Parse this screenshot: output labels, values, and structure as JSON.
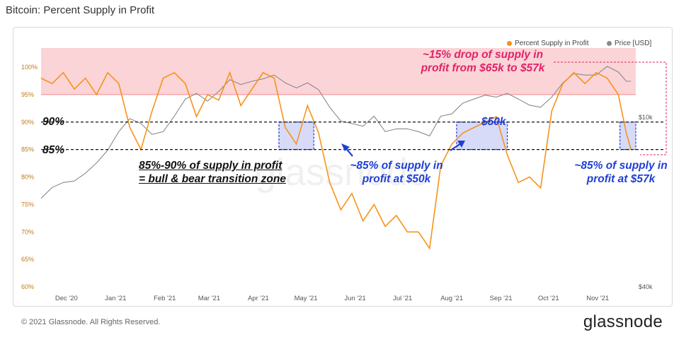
{
  "title": "Bitcoin: Percent Supply in Profit",
  "footer": "© 2021 Glassnode. All Rights Reserved.",
  "brand": "glassnode",
  "watermark": "glassnode",
  "legend": [
    {
      "label": "Percent Supply in Profit",
      "color": "#f7931a"
    },
    {
      "label": "Price [USD]",
      "color": "#8a8a8a"
    }
  ],
  "annotations": {
    "drop": "~15% drop of supply in profit from $65k to $57k",
    "zone_line1": "85%-90% of supply in profit",
    "zone_line2": "= bull & bear transition zone",
    "line90": "90%",
    "line85": "85%",
    "fifty_k": "$50k",
    "at50k": "~85% of supply in profit at $50k",
    "at57k": "~85% of supply in profit at $57k"
  },
  "colors": {
    "supply": "#f7931a",
    "price": "#8a8a8a",
    "band": "#f9c6c9",
    "highlight": "#c9cff5",
    "blue_text": "#1f3fd6",
    "pink_text": "#e0236b"
  },
  "chart_data": {
    "type": "line",
    "title": "Bitcoin: Percent Supply in Profit",
    "x_tick_labels": [
      "Dec '20",
      "Jan '21",
      "Feb '21",
      "Mar '21",
      "Apr '21",
      "May '21",
      "Jun '21",
      "Jul '21",
      "Aug '21",
      "Sep '21",
      "Oct '21",
      "Nov '21"
    ],
    "x_range": [
      "2020-11-15",
      "2021-11-25"
    ],
    "y_left_ticks": [
      "60%",
      "65%",
      "70%",
      "75%",
      "80%",
      "85%",
      "90%",
      "95%",
      "100%"
    ],
    "y_left_range": [
      60,
      100
    ],
    "y_right_ticks": [
      "$10k",
      "$40k"
    ],
    "y_right_scale": "log",
    "reference_lines": [
      90,
      85
    ],
    "band": [
      95,
      100
    ],
    "series": [
      {
        "name": "Percent Supply in Profit",
        "color": "#f7931a",
        "x": [
          "2020-11-15",
          "2020-11-22",
          "2020-11-29",
          "2020-12-06",
          "2020-12-13",
          "2020-12-20",
          "2020-12-27",
          "2021-01-03",
          "2021-01-10",
          "2021-01-17",
          "2021-01-24",
          "2021-01-31",
          "2021-02-07",
          "2021-02-14",
          "2021-02-21",
          "2021-02-28",
          "2021-03-07",
          "2021-03-14",
          "2021-03-21",
          "2021-03-28",
          "2021-04-04",
          "2021-04-11",
          "2021-04-18",
          "2021-04-25",
          "2021-05-02",
          "2021-05-09",
          "2021-05-16",
          "2021-05-23",
          "2021-05-30",
          "2021-06-06",
          "2021-06-13",
          "2021-06-20",
          "2021-06-27",
          "2021-07-04",
          "2021-07-11",
          "2021-07-18",
          "2021-07-25",
          "2021-08-01",
          "2021-08-08",
          "2021-08-15",
          "2021-08-22",
          "2021-08-29",
          "2021-09-05",
          "2021-09-12",
          "2021-09-19",
          "2021-09-26",
          "2021-10-03",
          "2021-10-10",
          "2021-10-17",
          "2021-10-24",
          "2021-10-31",
          "2021-11-07",
          "2021-11-14",
          "2021-11-19",
          "2021-11-22"
        ],
        "y": [
          98,
          97,
          99,
          96,
          98,
          95,
          99,
          97,
          89,
          85,
          92,
          98,
          99,
          97,
          91,
          95,
          94,
          99,
          93,
          96,
          99,
          98,
          89,
          86,
          93,
          88,
          79,
          74,
          77,
          72,
          75,
          71,
          73,
          70,
          70,
          67,
          82,
          86,
          88,
          89,
          90,
          91,
          84,
          79,
          80,
          78,
          92,
          97,
          99,
          97,
          99,
          98,
          95,
          88,
          85
        ]
      },
      {
        "name": "Price [USD]",
        "color": "#8a8a8a",
        "x": [
          "2020-11-15",
          "2020-11-22",
          "2020-11-29",
          "2020-12-06",
          "2020-12-13",
          "2020-12-20",
          "2020-12-27",
          "2021-01-03",
          "2021-01-10",
          "2021-01-17",
          "2021-01-24",
          "2021-01-31",
          "2021-02-07",
          "2021-02-14",
          "2021-02-21",
          "2021-02-28",
          "2021-03-07",
          "2021-03-14",
          "2021-03-21",
          "2021-03-28",
          "2021-04-04",
          "2021-04-11",
          "2021-04-18",
          "2021-04-25",
          "2021-05-02",
          "2021-05-09",
          "2021-05-16",
          "2021-05-23",
          "2021-05-30",
          "2021-06-06",
          "2021-06-13",
          "2021-06-20",
          "2021-06-27",
          "2021-07-04",
          "2021-07-11",
          "2021-07-18",
          "2021-07-25",
          "2021-08-01",
          "2021-08-08",
          "2021-08-15",
          "2021-08-22",
          "2021-08-29",
          "2021-09-05",
          "2021-09-12",
          "2021-09-19",
          "2021-09-26",
          "2021-10-03",
          "2021-10-10",
          "2021-10-17",
          "2021-10-24",
          "2021-10-31",
          "2021-11-07",
          "2021-11-14",
          "2021-11-19",
          "2021-11-22"
        ],
        "y": [
          16000,
          18000,
          19000,
          19300,
          21000,
          23500,
          27000,
          33000,
          38000,
          36000,
          32000,
          33000,
          39000,
          47000,
          50000,
          46000,
          51000,
          58000,
          55000,
          57000,
          58500,
          61000,
          56000,
          53000,
          56000,
          52000,
          43000,
          37000,
          36000,
          35000,
          39000,
          33000,
          34000,
          34000,
          33000,
          31500,
          39000,
          40000,
          45000,
          47000,
          49000,
          48000,
          50000,
          47000,
          44000,
          43000,
          48000,
          56000,
          62000,
          61000,
          61000,
          67000,
          63000,
          57000,
          57000
        ]
      }
    ]
  }
}
